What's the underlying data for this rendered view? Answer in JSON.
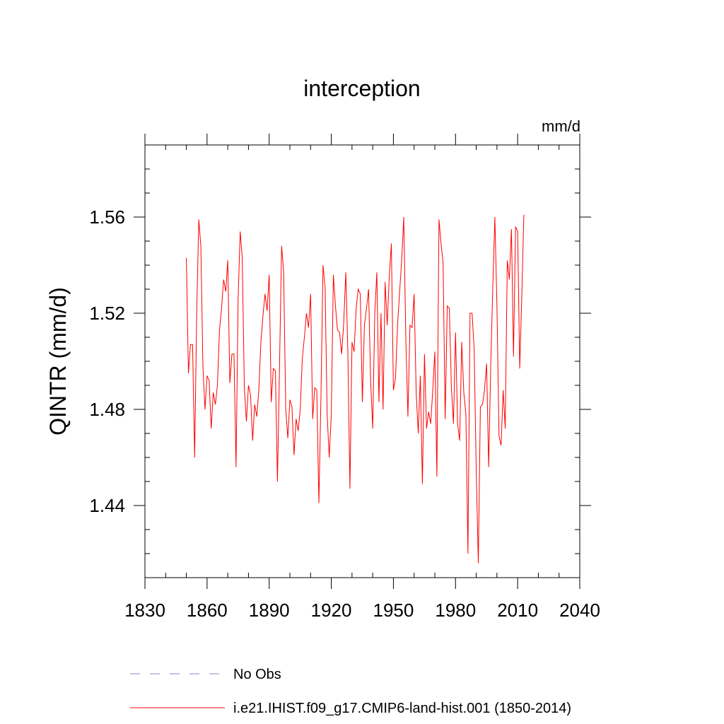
{
  "chart_data": {
    "type": "line",
    "title": "interception",
    "units_label": "mm/d",
    "ylabel": "QINTR  (mm/d)",
    "xlabel": "",
    "xlim": [
      1830,
      2040
    ],
    "ylim": [
      1.41,
      1.59
    ],
    "xticks": [
      1830,
      1860,
      1890,
      1920,
      1950,
      1980,
      2010,
      2040
    ],
    "yticks": [
      1.44,
      1.48,
      1.52,
      1.56
    ],
    "ytick_labels": [
      "1.44",
      "1.48",
      "1.52",
      "1.56"
    ],
    "grid": false,
    "legend_position": "bottom-left, below plot",
    "series": [
      {
        "name": "i.e21.IHIST.f09_g17.CMIP6-land-hist.001 (1850-2014)",
        "color": "#ff0000",
        "style": "solid",
        "x_start": 1850,
        "x_step": 1,
        "values": [
          1.543,
          1.495,
          1.507,
          1.507,
          1.46,
          1.52,
          1.559,
          1.548,
          1.498,
          1.48,
          1.494,
          1.492,
          1.472,
          1.487,
          1.482,
          1.49,
          1.513,
          1.522,
          1.534,
          1.529,
          1.542,
          1.491,
          1.503,
          1.503,
          1.456,
          1.526,
          1.554,
          1.543,
          1.489,
          1.475,
          1.49,
          1.486,
          1.467,
          1.482,
          1.477,
          1.488,
          1.508,
          1.519,
          1.528,
          1.521,
          1.536,
          1.483,
          1.497,
          1.496,
          1.45,
          1.498,
          1.548,
          1.537,
          1.48,
          1.468,
          1.484,
          1.481,
          1.461,
          1.476,
          1.471,
          1.48,
          1.501,
          1.51,
          1.52,
          1.514,
          1.528,
          1.476,
          1.489,
          1.488,
          1.441,
          1.485,
          1.54,
          1.531,
          1.478,
          1.46,
          1.478,
          1.536,
          1.523,
          1.513,
          1.512,
          1.503,
          1.516,
          1.537,
          1.504,
          1.447,
          1.508,
          1.504,
          1.522,
          1.53,
          1.528,
          1.483,
          1.515,
          1.522,
          1.53,
          1.492,
          1.472,
          1.52,
          1.537,
          1.483,
          1.52,
          1.48,
          1.533,
          1.515,
          1.535,
          1.549,
          1.488,
          1.493,
          1.515,
          1.529,
          1.542,
          1.56,
          1.509,
          1.477,
          1.515,
          1.514,
          1.528,
          1.487,
          1.47,
          1.494,
          1.449,
          1.503,
          1.472,
          1.479,
          1.474,
          1.488,
          1.504,
          1.452,
          1.559,
          1.549,
          1.541,
          1.476,
          1.523,
          1.522,
          1.489,
          1.474,
          1.512,
          1.474,
          1.467,
          1.508,
          1.487,
          1.478,
          1.42,
          1.52,
          1.52,
          1.505,
          1.455,
          1.416,
          1.481,
          1.482,
          1.488,
          1.499,
          1.456,
          1.498,
          1.531,
          1.56,
          1.523,
          1.469,
          1.465,
          1.488,
          1.472,
          1.542,
          1.534,
          1.555,
          1.502,
          1.556,
          1.554,
          1.497,
          1.527,
          1.561
        ]
      },
      {
        "name": "No Obs",
        "color": "#8b83d6",
        "style": "dashed",
        "values": []
      }
    ]
  }
}
